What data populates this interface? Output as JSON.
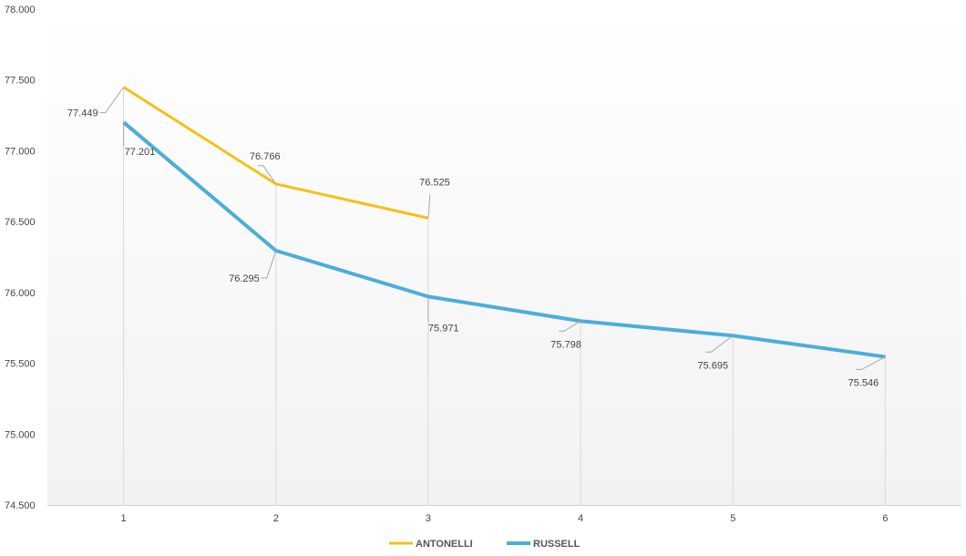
{
  "chart_data": {
    "type": "line",
    "title": "",
    "xlabel": "",
    "ylabel": "",
    "x": [
      1,
      2,
      3,
      4,
      5,
      6
    ],
    "x_tick_labels": [
      "1",
      "2",
      "3",
      "4",
      "5",
      "6"
    ],
    "ylim": [
      74.5,
      78.0
    ],
    "y_ticks": [
      74.5,
      75.0,
      75.5,
      76.0,
      76.5,
      77.0,
      77.5,
      78.0
    ],
    "y_tick_labels": [
      "74.500",
      "75.000",
      "75.500",
      "76.000",
      "76.500",
      "77.000",
      "77.500",
      "78.000"
    ],
    "grid": false,
    "drop_lines": true,
    "legend_placement": "bottom-center",
    "series": [
      {
        "name": "ANTONELLI",
        "color": "#F5C016",
        "x": [
          1,
          2,
          3
        ],
        "values": [
          77.449,
          76.766,
          76.525
        ],
        "labels": [
          "77.449",
          "76.766",
          "76.525"
        ]
      },
      {
        "name": "RUSSELL",
        "color": "#4BAED8",
        "x": [
          1,
          2,
          3,
          4,
          5,
          6
        ],
        "values": [
          77.201,
          76.295,
          75.971,
          75.798,
          75.695,
          75.546
        ],
        "labels": [
          "77.201",
          "76.295",
          "75.971",
          "75.798",
          "75.695",
          "75.546"
        ]
      }
    ]
  }
}
